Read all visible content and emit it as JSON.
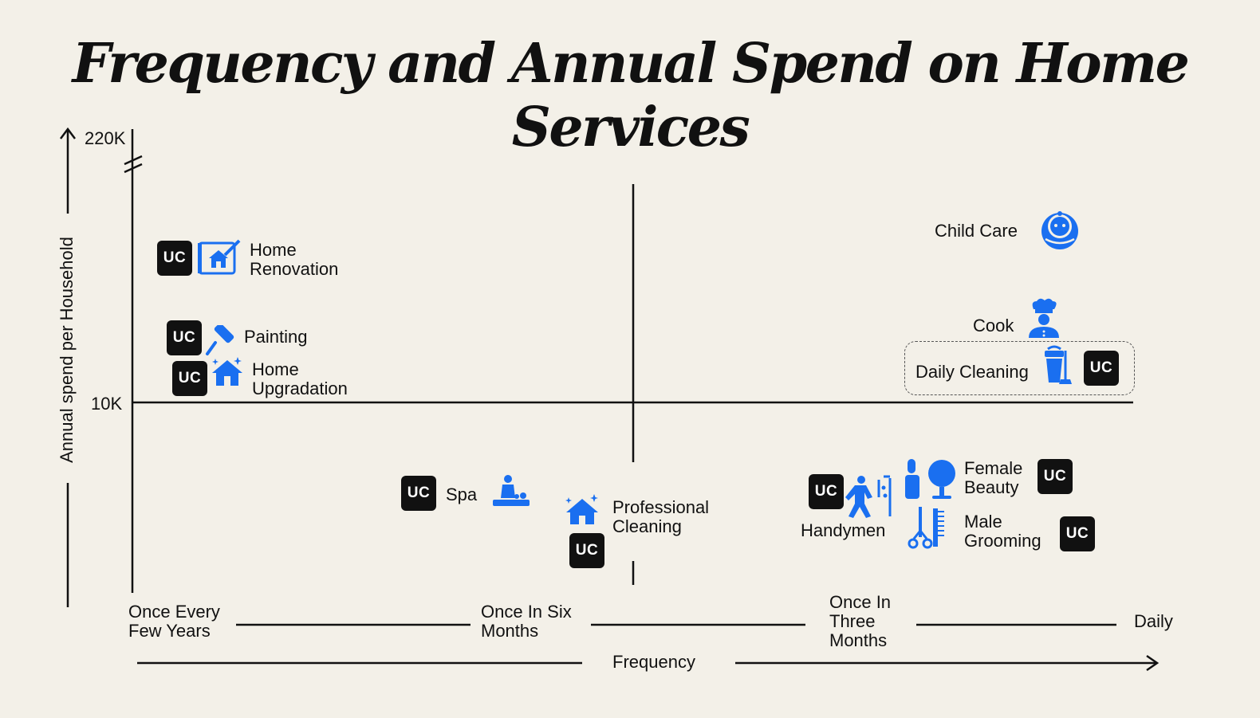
{
  "colors": {
    "background": "#f3f0e8",
    "accent": "#1a6ff0",
    "ink": "#111111"
  },
  "chart_data": {
    "type": "scatter",
    "title": "Frequency and Annual Spend  on Home Services",
    "xlabel": "Frequency",
    "ylabel": "Annual spend per Household",
    "x_ticks": [
      "Once Every Few Years",
      "Once In Six Months",
      "Once In Three Months",
      "Daily"
    ],
    "y_ticks": [
      "10K",
      "220K"
    ],
    "badge_text": "UC",
    "points": [
      {
        "name": "Home Renovation",
        "lines": [
          "Home",
          "Renovation"
        ],
        "uc": true,
        "icon": "blueprint-house-icon"
      },
      {
        "name": "Painting",
        "lines": [
          "Painting"
        ],
        "uc": true,
        "icon": "paint-roller-icon"
      },
      {
        "name": "Home Upgradation",
        "lines": [
          "Home",
          "Upgradation"
        ],
        "uc": true,
        "icon": "sparkle-house-icon"
      },
      {
        "name": "Spa",
        "lines": [
          "Spa"
        ],
        "uc": true,
        "icon": "massage-icon"
      },
      {
        "name": "Professional Cleaning",
        "lines": [
          "Professional",
          "Cleaning"
        ],
        "uc": true,
        "icon": "sparkle-house-icon"
      },
      {
        "name": "Handymen",
        "lines": [
          "Handymen"
        ],
        "uc": true,
        "icon": "handyman-icon"
      },
      {
        "name": "Female Beauty",
        "lines": [
          "Female",
          "Beauty"
        ],
        "uc": true,
        "icon": "mirror-lipstick-icon"
      },
      {
        "name": "Male Grooming",
        "lines": [
          "Male",
          "Grooming"
        ],
        "uc": true,
        "icon": "scissors-comb-icon"
      },
      {
        "name": "Child Care",
        "lines": [
          "Child Care"
        ],
        "uc": false,
        "icon": "baby-face-icon"
      },
      {
        "name": "Cook",
        "lines": [
          "Cook"
        ],
        "uc": false,
        "icon": "chef-icon"
      },
      {
        "name": "Daily Cleaning",
        "lines": [
          "Daily Cleaning"
        ],
        "uc": true,
        "icon": "bucket-mop-icon"
      }
    ]
  }
}
